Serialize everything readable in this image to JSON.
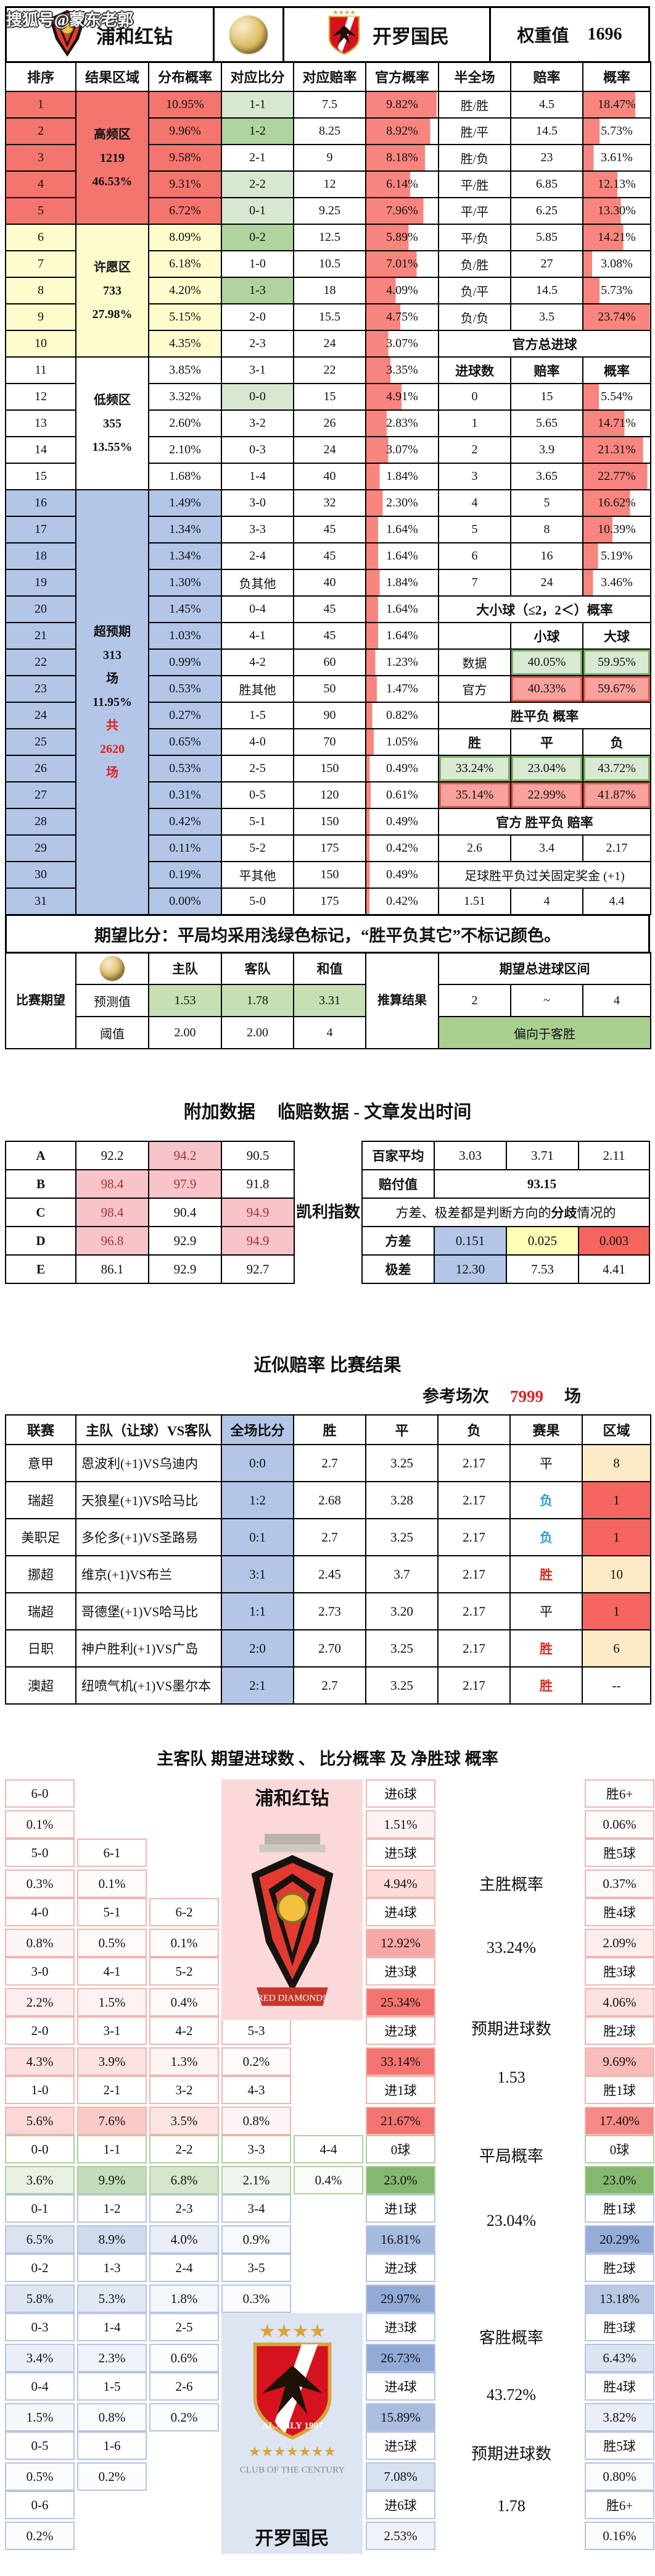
{
  "watermark": "搜狐号@蒙东老郭",
  "header": {
    "home_team": "浦和红钻",
    "away_team": "开罗国民",
    "weight_label": "权重值",
    "weight_value": "1696"
  },
  "main_table": {
    "columns": [
      "排序",
      "结果区域",
      "分布概率",
      "对应比分",
      "对应赔率",
      "官方概率",
      "半全场",
      "赔率",
      "概率"
    ],
    "zones": [
      {
        "r": 0,
        "n": 5,
        "c": "c-red",
        "lines": [
          "高频区",
          "1219",
          "46.53%"
        ]
      },
      {
        "r": 5,
        "n": 5,
        "c": "c-yellow",
        "lines": [
          "许愿区",
          "733",
          "27.98%"
        ]
      },
      {
        "r": 10,
        "n": 5,
        "c": "",
        "lines": [
          "低频区",
          "355",
          "13.55%"
        ]
      },
      {
        "r": 15,
        "n": 16,
        "c": "c-blue",
        "lines": [
          "超预期",
          "313",
          "场",
          "11.95%",
          "共|red",
          "2620|red",
          "场|red"
        ]
      }
    ],
    "rows": [
      [
        "1",
        "10.95%",
        "1-1",
        "lg",
        "7.5",
        "9.82%",
        [
          {
            "t": "胜/胜"
          },
          {
            "t": "4.5"
          },
          {
            "t": "18.47%",
            "b": 1
          }
        ]
      ],
      [
        "2",
        "9.96%",
        "1-2",
        "mg",
        "8.25",
        "8.92%",
        [
          {
            "t": "胜/平"
          },
          {
            "t": "14.5"
          },
          {
            "t": "5.73%",
            "b": 1
          }
        ]
      ],
      [
        "3",
        "9.58%",
        "2-1",
        "w",
        "9",
        "8.18%",
        [
          {
            "t": "胜/负"
          },
          {
            "t": "23"
          },
          {
            "t": "3.61%",
            "b": 1
          }
        ]
      ],
      [
        "4",
        "9.31%",
        "2-2",
        "lg",
        "12",
        "6.14%",
        [
          {
            "t": "平/胜"
          },
          {
            "t": "6.85"
          },
          {
            "t": "12.13%",
            "b": 1
          }
        ]
      ],
      [
        "5",
        "6.72%",
        "0-1",
        "lg",
        "9.25",
        "7.96%",
        [
          {
            "t": "平/平"
          },
          {
            "t": "6.25"
          },
          {
            "t": "13.30%",
            "b": 1
          }
        ]
      ],
      [
        "6",
        "8.09%",
        "0-2",
        "mg",
        "12.5",
        "5.89%",
        [
          {
            "t": "平/负"
          },
          {
            "t": "5.85"
          },
          {
            "t": "14.21%",
            "b": 1
          }
        ]
      ],
      [
        "7",
        "6.18%",
        "1-0",
        "w",
        "10.5",
        "7.01%",
        [
          {
            "t": "负/胜"
          },
          {
            "t": "27"
          },
          {
            "t": "3.08%",
            "b": 1
          }
        ]
      ],
      [
        "8",
        "4.20%",
        "1-3",
        "mg",
        "18",
        "4.09%",
        [
          {
            "t": "负/平"
          },
          {
            "t": "14.5"
          },
          {
            "t": "5.73%",
            "b": 1
          }
        ]
      ],
      [
        "9",
        "5.15%",
        "2-0",
        "w",
        "15.5",
        "4.75%",
        [
          {
            "t": "负/负"
          },
          {
            "t": "3.5"
          },
          {
            "t": "23.74%",
            "b": 1
          }
        ]
      ],
      [
        "10",
        "4.35%",
        "2-3",
        "w",
        "24",
        "3.07%",
        [
          {
            "t": "官方总进球",
            "s": 3,
            "h": 1
          }
        ]
      ],
      [
        "11",
        "3.85%",
        "3-1",
        "w",
        "22",
        "3.35%",
        [
          {
            "t": "进球数",
            "h": 1
          },
          {
            "t": "赔率",
            "h": 1
          },
          {
            "t": "概率",
            "h": 1
          }
        ]
      ],
      [
        "12",
        "3.32%",
        "0-0",
        "lg",
        "15",
        "4.91%",
        [
          {
            "t": "0"
          },
          {
            "t": "15"
          },
          {
            "t": "5.54%",
            "b": 1
          }
        ]
      ],
      [
        "13",
        "2.60%",
        "3-2",
        "w",
        "26",
        "2.83%",
        [
          {
            "t": "1"
          },
          {
            "t": "5.65"
          },
          {
            "t": "14.71%",
            "b": 1
          }
        ]
      ],
      [
        "14",
        "2.10%",
        "0-3",
        "w",
        "24",
        "3.07%",
        [
          {
            "t": "2"
          },
          {
            "t": "3.9"
          },
          {
            "t": "21.31%",
            "b": 1
          }
        ]
      ],
      [
        "15",
        "1.68%",
        "1-4",
        "w",
        "40",
        "1.84%",
        [
          {
            "t": "3"
          },
          {
            "t": "3.65"
          },
          {
            "t": "22.77%",
            "b": 1
          }
        ]
      ],
      [
        "16",
        "1.49%",
        "3-0",
        "w",
        "32",
        "2.30%",
        [
          {
            "t": "4"
          },
          {
            "t": "5"
          },
          {
            "t": "16.62%",
            "b": 1
          }
        ]
      ],
      [
        "17",
        "1.34%",
        "3-3",
        "w",
        "45",
        "1.64%",
        [
          {
            "t": "5"
          },
          {
            "t": "8"
          },
          {
            "t": "10.39%",
            "b": 1
          }
        ]
      ],
      [
        "18",
        "1.34%",
        "2-4",
        "w",
        "45",
        "1.64%",
        [
          {
            "t": "6"
          },
          {
            "t": "16"
          },
          {
            "t": "5.19%",
            "b": 1
          }
        ]
      ],
      [
        "19",
        "1.30%",
        "负其他",
        "w",
        "40",
        "1.84%",
        [
          {
            "t": "7"
          },
          {
            "t": "24"
          },
          {
            "t": "3.46%",
            "b": 1
          }
        ]
      ],
      [
        "20",
        "1.45%",
        "0-4",
        "w",
        "45",
        "1.64%",
        [
          {
            "t": "大小球（≤2，2＜）概率",
            "s": 3,
            "h": 1
          }
        ]
      ],
      [
        "21",
        "1.03%",
        "4-1",
        "w",
        "45",
        "1.64%",
        [
          {
            "ic": 1
          },
          {
            "t": "小球",
            "h": 1
          },
          {
            "t": "大球",
            "h": 1
          }
        ]
      ],
      [
        "22",
        "0.99%",
        "4-2",
        "w",
        "60",
        "1.23%",
        [
          {
            "t": "数据"
          },
          {
            "t": "40.05%",
            "c": "g"
          },
          {
            "t": "59.95%",
            "c": "g"
          }
        ]
      ],
      [
        "23",
        "0.53%",
        "胜其他",
        "w",
        "50",
        "1.47%",
        [
          {
            "t": "官方"
          },
          {
            "t": "40.33%",
            "c": "r"
          },
          {
            "t": "59.67%",
            "c": "r"
          }
        ]
      ],
      [
        "24",
        "0.27%",
        "1-5",
        "w",
        "90",
        "0.82%",
        [
          {
            "t": "胜平负  概率",
            "s": 3,
            "h": 1
          }
        ]
      ],
      [
        "25",
        "0.65%",
        "4-0",
        "w",
        "70",
        "1.05%",
        [
          {
            "t": "胜",
            "h": 1
          },
          {
            "t": "平",
            "h": 1
          },
          {
            "t": "负",
            "h": 1
          }
        ]
      ],
      [
        "26",
        "0.53%",
        "2-5",
        "w",
        "150",
        "0.49%",
        [
          {
            "t": "33.24%",
            "c": "g"
          },
          {
            "t": "23.04%",
            "c": "g"
          },
          {
            "t": "43.72%",
            "c": "g"
          }
        ]
      ],
      [
        "27",
        "0.31%",
        "0-5",
        "w",
        "120",
        "0.61%",
        [
          {
            "t": "35.14%",
            "c": "r"
          },
          {
            "t": "22.99%",
            "c": "r"
          },
          {
            "t": "41.87%",
            "c": "r"
          }
        ]
      ],
      [
        "28",
        "0.42%",
        "5-1",
        "w",
        "150",
        "0.49%",
        [
          {
            "t": "官方  胜平负  赔率",
            "s": 3,
            "h": 1
          }
        ]
      ],
      [
        "29",
        "0.11%",
        "5-2",
        "w",
        "175",
        "0.42%",
        [
          {
            "t": "2.6"
          },
          {
            "t": "3.4"
          },
          {
            "t": "2.17"
          }
        ]
      ],
      [
        "30",
        "0.19%",
        "平其他",
        "w",
        "150",
        "0.49%",
        [
          {
            "t": "足球胜平负过关固定奖金 (+1)",
            "s": 3
          }
        ]
      ],
      [
        "31",
        "0.00%",
        "5-0",
        "w",
        "175",
        "0.42%",
        [
          {
            "t": "1.51"
          },
          {
            "t": "4"
          },
          {
            "t": "4.4"
          }
        ]
      ]
    ]
  },
  "note": "期望比分：平局均采用浅绿色标记，“胜平负其它”不标记颜色。",
  "expectation": {
    "left": "比赛期望",
    "cols": [
      "主队",
      "客队",
      "和值"
    ],
    "pred_label": "预测值",
    "pred": [
      "1.53",
      "1.78",
      "3.31"
    ],
    "thr_label": "阈值",
    "thr": [
      "2.00",
      "2.00",
      "4"
    ],
    "mid": "推算结果",
    "range_title": "期望总进球区间",
    "range": [
      "2",
      "~",
      "4"
    ],
    "conclusion": "偏向于客胜"
  },
  "additional": {
    "title": "附加数据　 临赔数据 - 文章发出时间",
    "kelly_label": "凯利指数",
    "kelly_rows": [
      {
        "k": "A",
        "v": [
          "92.2",
          "94.2",
          "90.5"
        ],
        "p": [
          0,
          1,
          0
        ]
      },
      {
        "k": "B",
        "v": [
          "98.4",
          "97.9",
          "91.8"
        ],
        "p": [
          1,
          1,
          0
        ]
      },
      {
        "k": "C",
        "v": [
          "98.4",
          "90.4",
          "94.9"
        ],
        "p": [
          1,
          0,
          1
        ]
      },
      {
        "k": "D",
        "v": [
          "96.8",
          "92.9",
          "94.9"
        ],
        "p": [
          1,
          0,
          1
        ]
      },
      {
        "k": "E",
        "v": [
          "86.1",
          "92.9",
          "92.7"
        ],
        "p": [
          0,
          0,
          0
        ]
      }
    ],
    "avg_label": "百家平均",
    "avg": [
      "3.03",
      "3.71",
      "2.11"
    ],
    "payout_label": "赔付值",
    "payout": "93.15",
    "note_a": "方差、极差都是判断方向的",
    "note_b": "分歧",
    "note_c": "情况的",
    "var_label": "方差",
    "variance": [
      "0.151",
      "0.025",
      "0.003"
    ],
    "range_label": "极差",
    "range": [
      "12.30",
      "7.53",
      "4.41"
    ]
  },
  "similar": {
    "title": "近似赔率 比赛结果",
    "ref_label": "参考场次",
    "ref_value": "7999",
    "ref_unit": "场",
    "columns": [
      "联赛",
      "主队（让球）VS客队",
      "全场比分",
      "胜",
      "平",
      "负",
      "赛果",
      "区域"
    ],
    "rows": [
      [
        "意甲",
        "恩波利(+1)VS乌迪内",
        "0:0",
        "2.7",
        "3.25",
        "2.17",
        "平",
        "k",
        "8",
        "cream"
      ],
      [
        "瑞超",
        "天狼星(+1)VS哈马比",
        "1:2",
        "2.68",
        "3.28",
        "2.17",
        "负",
        "b",
        "1",
        "redbg"
      ],
      [
        "美职足",
        "多伦多(+1)VS圣路易",
        "0:1",
        "2.7",
        "3.25",
        "2.17",
        "负",
        "b",
        "1",
        "redbg"
      ],
      [
        "挪超",
        "维京(+1)VS布兰",
        "3:1",
        "2.45",
        "3.7",
        "2.17",
        "胜",
        "r",
        "10",
        "cream"
      ],
      [
        "瑞超",
        "哥德堡(+1)VS哈马比",
        "1:1",
        "2.73",
        "3.20",
        "2.17",
        "平",
        "k",
        "1",
        "redbg"
      ],
      [
        "日职",
        "神户胜利(+1)VS广岛",
        "2:0",
        "2.70",
        "3.25",
        "2.17",
        "胜",
        "r",
        "6",
        "cream"
      ],
      [
        "澳超",
        "纽喷气机(+1)VS墨尔本",
        "2:1",
        "2.7",
        "3.25",
        "2.17",
        "胜",
        "r",
        "--",
        "none"
      ]
    ]
  },
  "bottom": {
    "title": "主客队 期望进球数 、 比分概率 及 净胜球 概率",
    "home_team": "浦和红钻",
    "away_team": "开罗国民",
    "rows": [
      {
        "theme": "home",
        "cells": [
          [
            "6-0",
            "0.1%"
          ]
        ],
        "goal": [
          "进6球",
          "1.51%"
        ],
        "win": [
          "胜6+",
          "0.06%"
        ]
      },
      {
        "theme": "home",
        "cells": [
          [
            "5-0",
            "0.3%"
          ],
          [
            "6-1",
            "0.1%"
          ]
        ],
        "goal": [
          "进5球",
          "4.94%"
        ],
        "win": [
          "胜5球",
          "0.37%"
        ]
      },
      {
        "theme": "home",
        "cells": [
          [
            "4-0",
            "0.8%"
          ],
          [
            "5-1",
            "0.5%"
          ],
          [
            "6-2",
            "0.1%"
          ]
        ],
        "goal": [
          "进4球",
          "12.92%"
        ],
        "win": [
          "胜4球",
          "2.09%"
        ]
      },
      {
        "theme": "home",
        "cells": [
          [
            "3-0",
            "2.2%"
          ],
          [
            "4-1",
            "1.5%"
          ],
          [
            "5-2",
            "0.4%"
          ]
        ],
        "goal": [
          "进3球",
          "25.34%"
        ],
        "win": [
          "胜3球",
          "4.06%"
        ]
      },
      {
        "theme": "home",
        "cells": [
          [
            "2-0",
            "4.3%"
          ],
          [
            "3-1",
            "3.9%"
          ],
          [
            "4-2",
            "1.3%"
          ],
          [
            "5-3",
            "0.2%"
          ]
        ],
        "goal": [
          "进2球",
          "33.14%"
        ],
        "win": [
          "胜2球",
          "9.69%"
        ]
      },
      {
        "theme": "home",
        "cells": [
          [
            "1-0",
            "5.6%"
          ],
          [
            "2-1",
            "7.6%"
          ],
          [
            "3-2",
            "3.5%"
          ],
          [
            "4-3",
            "0.8%"
          ]
        ],
        "goal": [
          "进1球",
          "21.67%"
        ],
        "win": [
          "胜1球",
          "17.40%"
        ]
      },
      {
        "theme": "draw",
        "cells": [
          [
            "0-0",
            "3.6%"
          ],
          [
            "1-1",
            "9.9%"
          ],
          [
            "2-2",
            "6.8%"
          ],
          [
            "3-3",
            "2.1%"
          ],
          [
            "4-4",
            "0.4%"
          ]
        ],
        "goal": [
          "0球",
          "23.0%"
        ],
        "win": [
          "0球",
          "23.0%"
        ]
      },
      {
        "theme": "away",
        "cells": [
          [
            "0-1",
            "6.5%"
          ],
          [
            "1-2",
            "8.9%"
          ],
          [
            "2-3",
            "4.0%"
          ],
          [
            "3-4",
            "0.9%"
          ]
        ],
        "goal": [
          "进1球",
          "16.81%"
        ],
        "win": [
          "胜1球",
          "20.29%"
        ]
      },
      {
        "theme": "away",
        "cells": [
          [
            "0-2",
            "5.8%"
          ],
          [
            "1-3",
            "5.3%"
          ],
          [
            "2-4",
            "1.8%"
          ],
          [
            "3-5",
            "0.3%"
          ]
        ],
        "goal": [
          "进2球",
          "29.97%"
        ],
        "win": [
          "胜2球",
          "13.18%"
        ]
      },
      {
        "theme": "away",
        "cells": [
          [
            "0-3",
            "3.4%"
          ],
          [
            "1-4",
            "2.3%"
          ],
          [
            "2-5",
            "0.6%"
          ]
        ],
        "goal": [
          "进3球",
          "26.73%"
        ],
        "win": [
          "胜3球",
          "6.43%"
        ]
      },
      {
        "theme": "away",
        "cells": [
          [
            "0-4",
            "1.5%"
          ],
          [
            "1-5",
            "0.8%"
          ],
          [
            "2-6",
            "0.2%"
          ]
        ],
        "goal": [
          "进4球",
          "15.89%"
        ],
        "win": [
          "胜4球",
          "3.82%"
        ]
      },
      {
        "theme": "away",
        "cells": [
          [
            "0-5",
            "0.5%"
          ],
          [
            "1-6",
            "0.2%"
          ]
        ],
        "goal": [
          "进5球",
          "7.08%"
        ],
        "win": [
          "胜5球",
          "0.80%"
        ]
      },
      {
        "theme": "away",
        "cells": [
          [
            "0-6",
            "0.2%"
          ]
        ],
        "goal": [
          "进6球",
          "2.53%"
        ],
        "win": [
          "胜6+",
          "0.16%"
        ]
      }
    ],
    "mid": [
      "主胜概率",
      "33.24%",
      "预期进球数",
      "1.53",
      "平局概率",
      "23.04%",
      "客胜概率",
      "43.72%",
      "预期进球数",
      "1.78"
    ]
  }
}
